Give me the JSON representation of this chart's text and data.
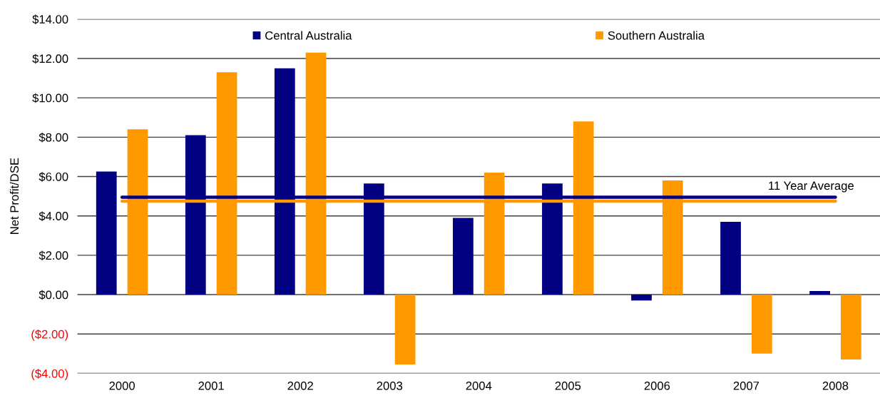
{
  "chart_data": {
    "type": "bar",
    "ylabel": "Net Profit/DSE",
    "categories": [
      "2000",
      "2001",
      "2002",
      "2003",
      "2004",
      "2005",
      "2006",
      "2007",
      "2008"
    ],
    "series": [
      {
        "name": "Central Australia",
        "color": "#000080",
        "values": [
          6.25,
          8.1,
          11.5,
          5.65,
          3.9,
          5.65,
          -0.3,
          3.7,
          0.18
        ]
      },
      {
        "name": "Southern Australia",
        "color": "#ff9900",
        "values": [
          8.4,
          11.3,
          12.3,
          -3.55,
          6.2,
          8.8,
          5.8,
          -3.0,
          -3.3
        ]
      }
    ],
    "ylim": [
      -4,
      14
    ],
    "yticks": [
      {
        "value": -4,
        "label": "($4.00)"
      },
      {
        "value": -2,
        "label": "($2.00)"
      },
      {
        "value": 0,
        "label": "$0.00"
      },
      {
        "value": 2,
        "label": "$2.00"
      },
      {
        "value": 4,
        "label": "$4.00"
      },
      {
        "value": 6,
        "label": "$6.00"
      },
      {
        "value": 8,
        "label": "$8.00"
      },
      {
        "value": 10,
        "label": "$10.00"
      },
      {
        "value": 12,
        "label": "$12.00"
      },
      {
        "value": 14,
        "label": "$14.00"
      }
    ],
    "grid": "y",
    "legend": "top",
    "ref_lines": [
      {
        "axis": "y",
        "value": 4.95,
        "color": "#000080",
        "label": "11 Year Average"
      },
      {
        "axis": "y",
        "value": 4.75,
        "color": "#ff9900"
      }
    ]
  }
}
